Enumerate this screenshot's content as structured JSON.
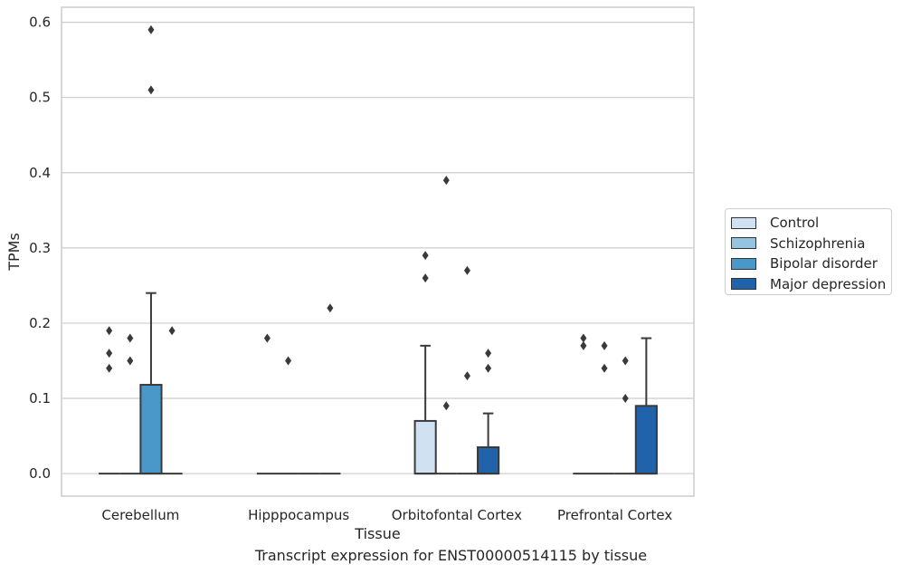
{
  "chart_data": {
    "type": "box",
    "xlabel": "Tissue",
    "ylabel": "TPMs",
    "caption": "Transcript expression for ENST00000514115 by tissue",
    "categories": [
      "Cerebellum",
      "Hipppocampus",
      "Orbitofontal Cortex",
      "Prefrontal Cortex"
    ],
    "ylim": [
      -0.03,
      0.62
    ],
    "yticks": [
      0.0,
      0.1,
      0.2,
      0.3,
      0.4,
      0.5,
      0.6
    ],
    "ytick_labels": [
      "0.0",
      "0.1",
      "0.2",
      "0.3",
      "0.4",
      "0.5",
      "0.6"
    ],
    "grid": "horizontal",
    "legend_position": "outside-right",
    "series": [
      {
        "name": "Control",
        "color": "#d0e1f2",
        "boxes": [
          {
            "q1": 0,
            "median": 0,
            "q3": 0,
            "whisker_low": 0,
            "whisker_high": 0,
            "outliers": [
              0.19,
              0.16,
              0.14
            ]
          },
          {
            "q1": 0,
            "median": 0,
            "q3": 0,
            "whisker_low": 0,
            "whisker_high": 0,
            "outliers": [
              0.18
            ]
          },
          {
            "q1": 0,
            "median": 0,
            "q3": 0.07,
            "whisker_low": 0,
            "whisker_high": 0.17,
            "outliers": [
              0.29,
              0.26
            ]
          },
          {
            "q1": 0,
            "median": 0,
            "q3": 0,
            "whisker_low": 0,
            "whisker_high": 0,
            "outliers": [
              0.18,
              0.17
            ]
          }
        ]
      },
      {
        "name": "Schizophrenia",
        "color": "#94c4df",
        "boxes": [
          {
            "q1": 0,
            "median": 0,
            "q3": 0,
            "whisker_low": 0,
            "whisker_high": 0,
            "outliers": [
              0.18,
              0.15
            ]
          },
          {
            "q1": 0,
            "median": 0,
            "q3": 0,
            "whisker_low": 0,
            "whisker_high": 0,
            "outliers": [
              0.15
            ]
          },
          {
            "q1": 0,
            "median": 0,
            "q3": 0,
            "whisker_low": 0,
            "whisker_high": 0,
            "outliers": [
              0.39,
              0.09
            ]
          },
          {
            "q1": 0,
            "median": 0,
            "q3": 0,
            "whisker_low": 0,
            "whisker_high": 0,
            "outliers": [
              0.17,
              0.14
            ]
          }
        ]
      },
      {
        "name": "Bipolar disorder",
        "color": "#4a98c9",
        "boxes": [
          {
            "q1": 0,
            "median": 0,
            "q3": 0.118,
            "whisker_low": 0,
            "whisker_high": 0.24,
            "outliers": [
              0.59,
              0.51
            ]
          },
          {
            "q1": 0,
            "median": 0,
            "q3": 0,
            "whisker_low": 0,
            "whisker_high": 0,
            "outliers": []
          },
          {
            "q1": 0,
            "median": 0,
            "q3": 0,
            "whisker_low": 0,
            "whisker_high": 0,
            "outliers": [
              0.27,
              0.13
            ]
          },
          {
            "q1": 0,
            "median": 0,
            "q3": 0,
            "whisker_low": 0,
            "whisker_high": 0,
            "outliers": [
              0.15,
              0.1
            ]
          }
        ]
      },
      {
        "name": "Major depression",
        "color": "#2163aa",
        "boxes": [
          {
            "q1": 0,
            "median": 0,
            "q3": 0,
            "whisker_low": 0,
            "whisker_high": 0,
            "outliers": [
              0.19
            ]
          },
          {
            "q1": 0,
            "median": 0,
            "q3": 0,
            "whisker_low": 0,
            "whisker_high": 0,
            "outliers": [
              0.22
            ]
          },
          {
            "q1": 0,
            "median": 0,
            "q3": 0.035,
            "whisker_low": 0,
            "whisker_high": 0.08,
            "outliers": [
              0.16,
              0.14
            ]
          },
          {
            "q1": 0,
            "median": 0,
            "q3": 0.09,
            "whisker_low": 0,
            "whisker_high": 0.18,
            "outliers": []
          }
        ]
      }
    ]
  }
}
